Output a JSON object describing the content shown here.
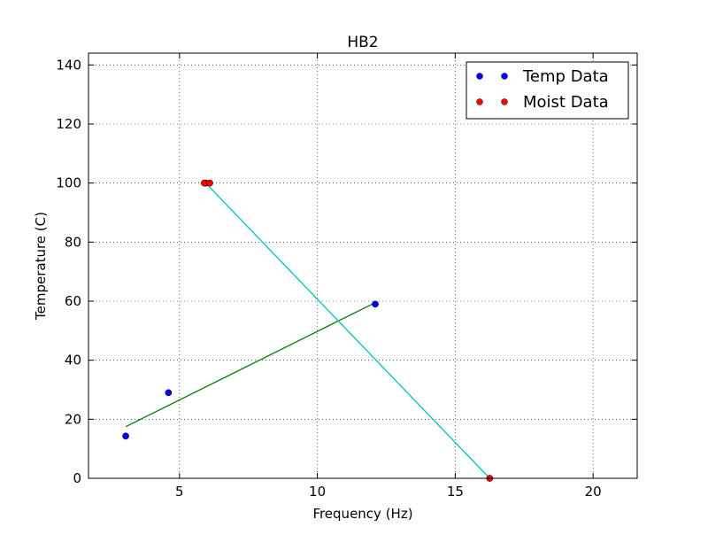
{
  "chart_data": {
    "type": "scatter",
    "title": "HB2",
    "xlabel": "Frequency (Hz)",
    "ylabel": "Temperature (C)",
    "xlim": [
      1.7,
      21.6
    ],
    "ylim": [
      0,
      144
    ],
    "xticks": [
      5,
      10,
      15,
      20
    ],
    "yticks": [
      0,
      20,
      40,
      60,
      80,
      100,
      120,
      140
    ],
    "xtick_labels": [
      "5",
      "10",
      "15",
      "20"
    ],
    "ytick_labels": [
      "0",
      "20",
      "40",
      "60",
      "80",
      "100",
      "120",
      "140"
    ],
    "grid": true,
    "legend_position": "top-right",
    "series": [
      {
        "name": "Temp Data",
        "kind": "points",
        "color": "#0000ff",
        "x": [
          3.05,
          4.6,
          5.95,
          12.1
        ],
        "y": [
          14.3,
          29.0,
          100.0,
          59.0
        ]
      },
      {
        "name": "Moist Data",
        "kind": "points",
        "color": "#ff0000",
        "x": [
          5.9,
          6.1,
          16.25
        ],
        "y": [
          100.0,
          100.0,
          0.0
        ]
      },
      {
        "kind": "line",
        "color": "#008000",
        "x": [
          3.05,
          12.1
        ],
        "y": [
          17.5,
          59.5
        ]
      },
      {
        "kind": "line",
        "color": "#00bfbf",
        "x": [
          5.95,
          16.25
        ],
        "y": [
          100.0,
          0.0
        ]
      }
    ]
  }
}
